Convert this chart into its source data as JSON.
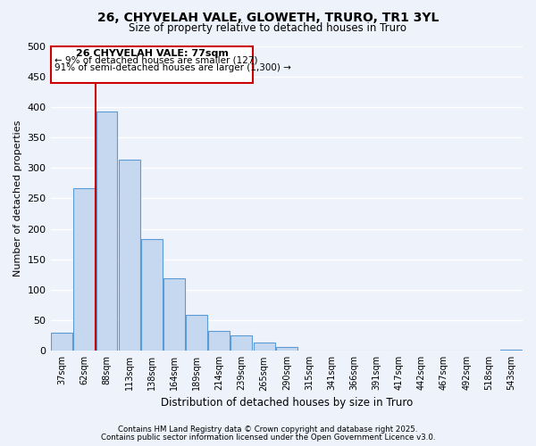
{
  "title": "26, CHYVELAH VALE, GLOWETH, TRURO, TR1 3YL",
  "subtitle": "Size of property relative to detached houses in Truro",
  "xlabel": "Distribution of detached houses by size in Truro",
  "ylabel": "Number of detached properties",
  "bar_labels": [
    "37sqm",
    "62sqm",
    "88sqm",
    "113sqm",
    "138sqm",
    "164sqm",
    "189sqm",
    "214sqm",
    "239sqm",
    "265sqm",
    "290sqm",
    "315sqm",
    "341sqm",
    "366sqm",
    "391sqm",
    "417sqm",
    "442sqm",
    "467sqm",
    "492sqm",
    "518sqm",
    "543sqm"
  ],
  "bar_values": [
    30,
    267,
    393,
    314,
    183,
    119,
    59,
    33,
    25,
    14,
    6,
    1,
    0,
    0,
    0,
    0,
    0,
    1,
    0,
    0,
    2
  ],
  "bar_color": "#c5d8f0",
  "bar_edge_color": "#5b9bd5",
  "ylim": [
    0,
    500
  ],
  "yticks": [
    0,
    50,
    100,
    150,
    200,
    250,
    300,
    350,
    400,
    450,
    500
  ],
  "property_line_color": "#cc0000",
  "annotation_title": "26 CHYVELAH VALE: 77sqm",
  "annotation_line1": "← 9% of detached houses are smaller (127)",
  "annotation_line2": "91% of semi-detached houses are larger (1,300) →",
  "annotation_box_color": "#cc0000",
  "footnote1": "Contains HM Land Registry data © Crown copyright and database right 2025.",
  "footnote2": "Contains public sector information licensed under the Open Government Licence v3.0.",
  "bg_color": "#eef2fb",
  "grid_color": "#d0d8ee",
  "title_fontsize": 10,
  "subtitle_fontsize": 8.5
}
